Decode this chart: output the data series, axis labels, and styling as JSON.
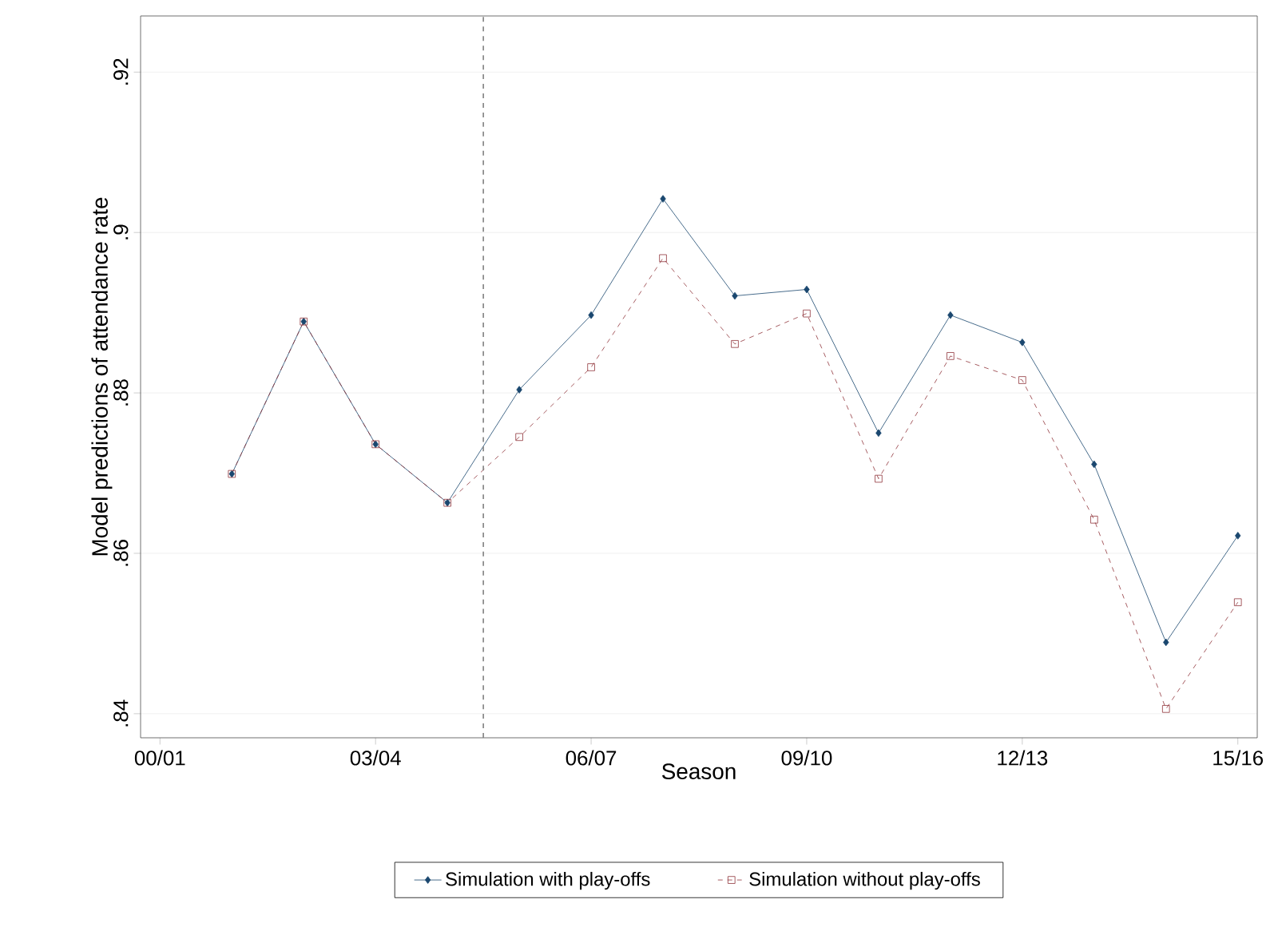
{
  "chart_data": {
    "type": "line",
    "xlabel": "Season",
    "ylabel": "Model predictions of attendance rate",
    "categories": [
      "00/01",
      null,
      null,
      "03/04",
      null,
      null,
      "06/07",
      null,
      null,
      "09/10",
      null,
      null,
      "12/13",
      null,
      null,
      "15/16"
    ],
    "series": [
      {
        "name": "Simulation with play-offs",
        "color": "#1a476f",
        "marker": "diamond",
        "line_style": "solid",
        "values": [
          null,
          0.8699,
          0.8889,
          0.8736,
          0.8663,
          0.8804,
          0.8897,
          0.9042,
          0.8921,
          0.8929,
          0.875,
          0.8897,
          0.8863,
          0.8711,
          0.8489,
          0.8622
        ]
      },
      {
        "name": "Simulation without play-offs",
        "color": "#90353b",
        "marker": "square",
        "line_style": "dashed",
        "values": [
          null,
          0.8699,
          0.8889,
          0.8736,
          0.8663,
          0.8745,
          0.8832,
          0.8968,
          0.8861,
          0.8899,
          0.8693,
          0.8846,
          0.8816,
          0.8642,
          0.8406,
          0.8539
        ]
      }
    ],
    "ylim": [
      0.837,
      0.927
    ],
    "yticks": [
      {
        "value": 0.84,
        "label": ".84"
      },
      {
        "value": 0.86,
        "label": ".86"
      },
      {
        "value": 0.88,
        "label": ".88"
      },
      {
        "value": 0.9,
        "label": ".9"
      },
      {
        "value": 0.92,
        "label": ".92"
      }
    ],
    "grid": "y",
    "legend": "bottom"
  }
}
